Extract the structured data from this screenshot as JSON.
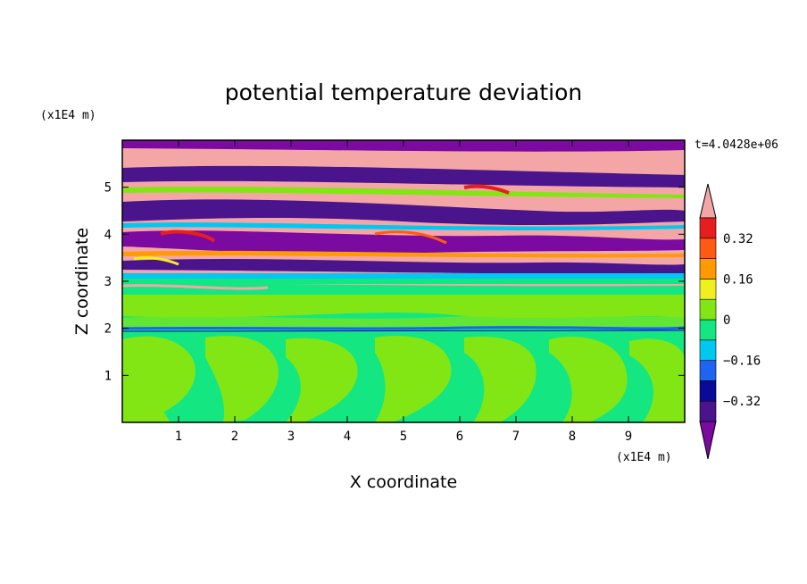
{
  "chart_data": {
    "type": "heatmap",
    "title": "potential temperature deviation",
    "xlabel": "X coordinate",
    "ylabel": "Z coordinate",
    "x_unit": "(x1E4 m)",
    "y_unit": "(x1E4 m)",
    "time_label": "t=4.0428e+06",
    "xlim": [
      0,
      10
    ],
    "ylim": [
      0,
      6
    ],
    "x_ticks": [
      "1",
      "2",
      "3",
      "4",
      "5",
      "6",
      "7",
      "8",
      "9"
    ],
    "y_ticks": [
      "1",
      "2",
      "3",
      "4",
      "5"
    ],
    "colorbar": {
      "levels": [
        -0.4,
        -0.32,
        -0.24,
        -0.16,
        -0.08,
        0,
        0.08,
        0.16,
        0.24,
        0.32,
        0.4
      ],
      "tick_labels": [
        "0.32",
        "0.16",
        "0",
        "−0.16",
        "−0.32"
      ],
      "tick_values": [
        0.32,
        0.16,
        0,
        -0.16,
        -0.32
      ],
      "colors": [
        "#7a0aa0",
        "#4a148c",
        "#0a0a9a",
        "#1e64f0",
        "#00c8f0",
        "#14e682",
        "#82e614",
        "#f0f01e",
        "#ff9a00",
        "#ff5a14",
        "#e61e1e",
        "#f4a6a6"
      ]
    }
  }
}
